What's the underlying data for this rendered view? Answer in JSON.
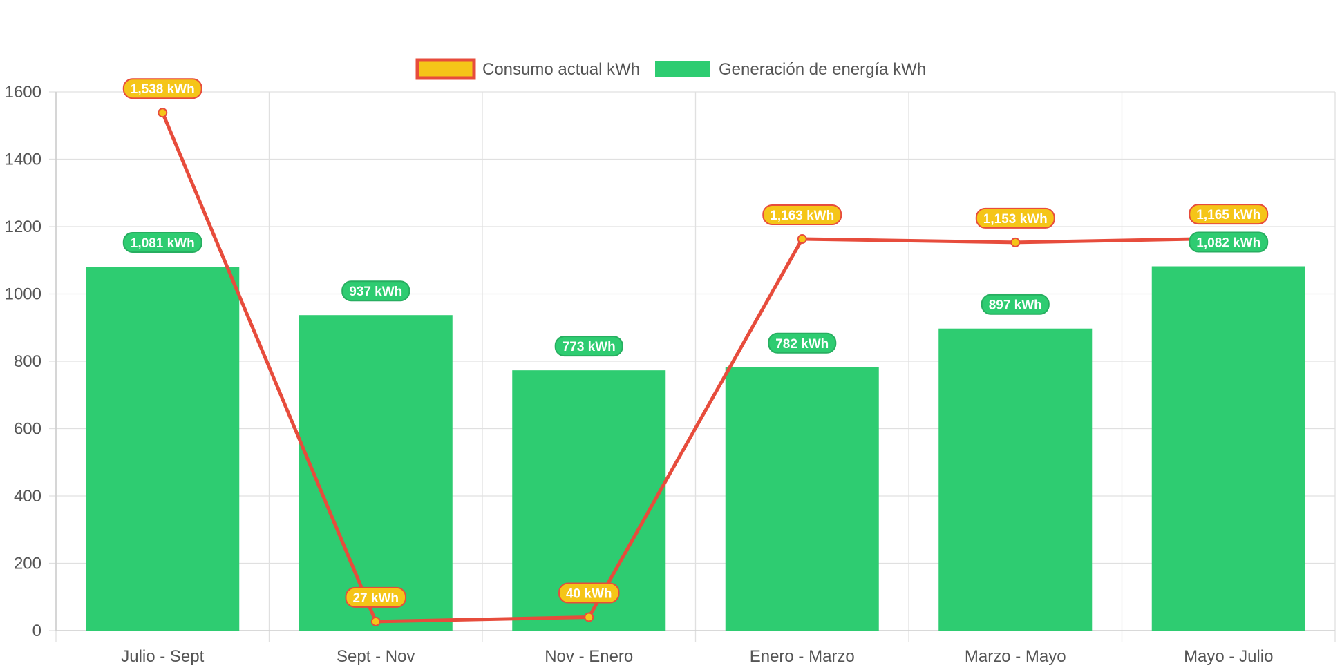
{
  "chart_data": {
    "type": "bar",
    "title": "",
    "xlabel": "",
    "ylabel": "",
    "categories": [
      "Julio - Sept",
      "Sept - Nov",
      "Nov - Enero",
      "Enero - Marzo",
      "Marzo - Mayo",
      "Mayo - Julio"
    ],
    "ylim": [
      0,
      1600
    ],
    "yticks": [
      "1600",
      "1400",
      "1200",
      "1000",
      "800",
      "600",
      "400",
      "200",
      "0"
    ],
    "grid": true,
    "legend_position": "top-center",
    "series": [
      {
        "name": "Consumo actual kWh",
        "type": "line",
        "values": [
          1538,
          27,
          40,
          1163,
          1153,
          1165
        ],
        "labels": [
          "1,538 kWh",
          "27 kWh",
          "40 kWh",
          "1,163 kWh",
          "1,153 kWh",
          "1,165 kWh"
        ],
        "color": "#e74c3c",
        "fill": "#f5c518"
      },
      {
        "name": "Generación de energía kWh",
        "type": "bar",
        "values": [
          1081,
          937,
          773,
          782,
          897,
          1082
        ],
        "labels": [
          "1,081 kWh",
          "937 kWh",
          "773 kWh",
          "782 kWh",
          "897 kWh",
          "1,082 kWh"
        ],
        "color": "#2ecc71"
      }
    ]
  }
}
